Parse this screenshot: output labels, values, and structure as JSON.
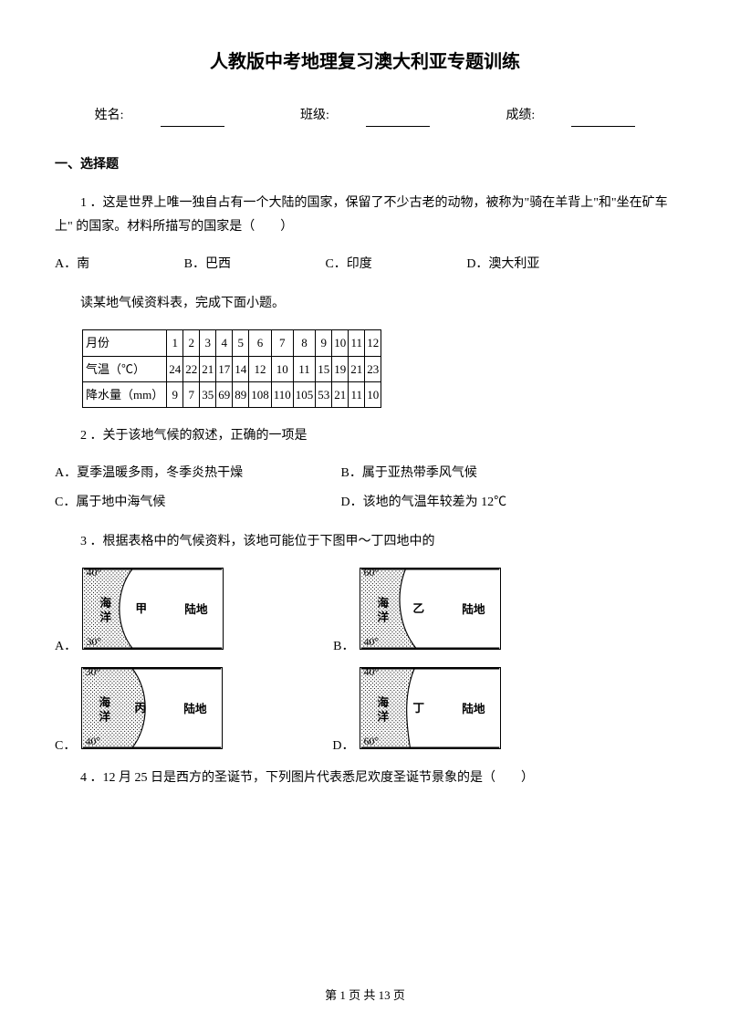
{
  "title": "人教版中考地理复习澳大利亚专题训练",
  "header": {
    "name_label": "姓名:",
    "class_label": "班级:",
    "score_label": "成绩:"
  },
  "section1_title": "一、选择题",
  "q1": {
    "text": "1 ．这是世界上唯一独自占有一个大陆的国家，保留了不少古老的动物，被称为\"骑在羊背上\"和\"坐在矿车上\" 的国家。材料所描写的国家是（　　）",
    "a": "A．南",
    "b": "B．巴西",
    "c": "C．印度",
    "d": "D．澳大利亚"
  },
  "intro2": "读某地气候资料表，完成下面小题。",
  "climate_table": {
    "h_month": "月份",
    "months": [
      "1",
      "2",
      "3",
      "4",
      "5",
      "6",
      "7",
      "8",
      "9",
      "10",
      "11",
      "12"
    ],
    "h_temp": "气温（℃）",
    "temps": [
      "24",
      "22",
      "21",
      "17",
      "14",
      "12",
      "10",
      "11",
      "15",
      "19",
      "21",
      "23"
    ],
    "h_rain": "降水量（mm）",
    "rains": [
      "9",
      "7",
      "35",
      "69",
      "89",
      "108",
      "110",
      "105",
      "53",
      "21",
      "11",
      "10"
    ],
    "border_color": "#000000",
    "font_size": 13
  },
  "q2": {
    "text": "2 ．关于该地气候的叙述，正确的一项是",
    "a": "A．夏季温暖多雨，冬季炎热干燥",
    "b": "B．属于亚热带季风气候",
    "c": "C．属于地中海气候",
    "d": "D．该地的气温年较差为 12℃"
  },
  "q3": {
    "text": "3 ．根据表格中的气候资料，该地可能位于下图甲～丁四地中的"
  },
  "maps": {
    "width": 155,
    "height": 90,
    "sea_text": "海洋",
    "land_text": "陆地",
    "items": [
      {
        "label": "A．",
        "top_lat": "40°",
        "bottom_lat": "30°",
        "marker": "甲",
        "curve": "left"
      },
      {
        "label": "B．",
        "top_lat": "60°",
        "bottom_lat": "40°",
        "marker": "乙",
        "curve": "left2"
      },
      {
        "label": "C．",
        "top_lat": "30°",
        "bottom_lat": "40°",
        "marker": "丙",
        "curve": "right"
      },
      {
        "label": "D．",
        "top_lat": "40°",
        "bottom_lat": "60°",
        "marker": "丁",
        "curve": "right2"
      }
    ]
  },
  "q4": {
    "text": "4 ．12 月 25 日是西方的圣诞节，下列图片代表悉尼欢度圣诞节景象的是（　　）"
  },
  "footer": {
    "text": "第 1 页 共 13 页"
  }
}
